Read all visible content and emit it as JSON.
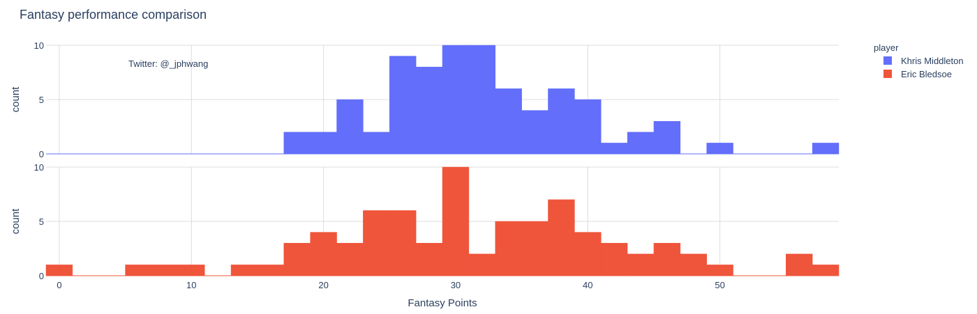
{
  "chart_data": {
    "type": "bar",
    "title": "Fantasy performance comparison",
    "xlabel": "Fantasy Points",
    "ylabel": "count",
    "xlim": [
      -1,
      59
    ],
    "ylim": [
      0,
      10
    ],
    "bin_width": 2,
    "x_ticks": [
      0,
      10,
      20,
      30,
      40,
      50
    ],
    "y_ticks": [
      0,
      5,
      10
    ],
    "annotation": "Twitter: @_jphwang",
    "legend": {
      "title": "player",
      "placement": "top-right"
    },
    "series": [
      {
        "name": "Khris Middleton",
        "color": "#636efa",
        "bins": [
          {
            "x0": 17,
            "value": 2
          },
          {
            "x0": 19,
            "value": 2
          },
          {
            "x0": 21,
            "value": 5
          },
          {
            "x0": 23,
            "value": 2
          },
          {
            "x0": 25,
            "value": 9
          },
          {
            "x0": 27,
            "value": 8
          },
          {
            "x0": 29,
            "value": 10
          },
          {
            "x0": 31,
            "value": 10
          },
          {
            "x0": 33,
            "value": 6
          },
          {
            "x0": 35,
            "value": 4
          },
          {
            "x0": 37,
            "value": 6
          },
          {
            "x0": 39,
            "value": 5
          },
          {
            "x0": 41,
            "value": 1
          },
          {
            "x0": 43,
            "value": 2
          },
          {
            "x0": 45,
            "value": 3
          },
          {
            "x0": 47,
            "value": 0
          },
          {
            "x0": 49,
            "value": 1
          },
          {
            "x0": 51,
            "value": 0
          },
          {
            "x0": 53,
            "value": 0
          },
          {
            "x0": 55,
            "value": 0
          },
          {
            "x0": 57,
            "value": 1
          }
        ]
      },
      {
        "name": "Eric Bledsoe",
        "color": "#ef553b",
        "bins": [
          {
            "x0": -1,
            "value": 1
          },
          {
            "x0": 1,
            "value": 0
          },
          {
            "x0": 3,
            "value": 0
          },
          {
            "x0": 5,
            "value": 1
          },
          {
            "x0": 7,
            "value": 1
          },
          {
            "x0": 9,
            "value": 1
          },
          {
            "x0": 11,
            "value": 0
          },
          {
            "x0": 13,
            "value": 1
          },
          {
            "x0": 15,
            "value": 1
          },
          {
            "x0": 17,
            "value": 3
          },
          {
            "x0": 19,
            "value": 4
          },
          {
            "x0": 21,
            "value": 3
          },
          {
            "x0": 23,
            "value": 6
          },
          {
            "x0": 25,
            "value": 6
          },
          {
            "x0": 27,
            "value": 3
          },
          {
            "x0": 29,
            "value": 10
          },
          {
            "x0": 31,
            "value": 2
          },
          {
            "x0": 33,
            "value": 5
          },
          {
            "x0": 35,
            "value": 5
          },
          {
            "x0": 37,
            "value": 7
          },
          {
            "x0": 39,
            "value": 4
          },
          {
            "x0": 41,
            "value": 3
          },
          {
            "x0": 43,
            "value": 2
          },
          {
            "x0": 45,
            "value": 3
          },
          {
            "x0": 47,
            "value": 2
          },
          {
            "x0": 49,
            "value": 1
          },
          {
            "x0": 51,
            "value": 0
          },
          {
            "x0": 53,
            "value": 0
          },
          {
            "x0": 55,
            "value": 2
          },
          {
            "x0": 57,
            "value": 1
          }
        ]
      }
    ]
  }
}
